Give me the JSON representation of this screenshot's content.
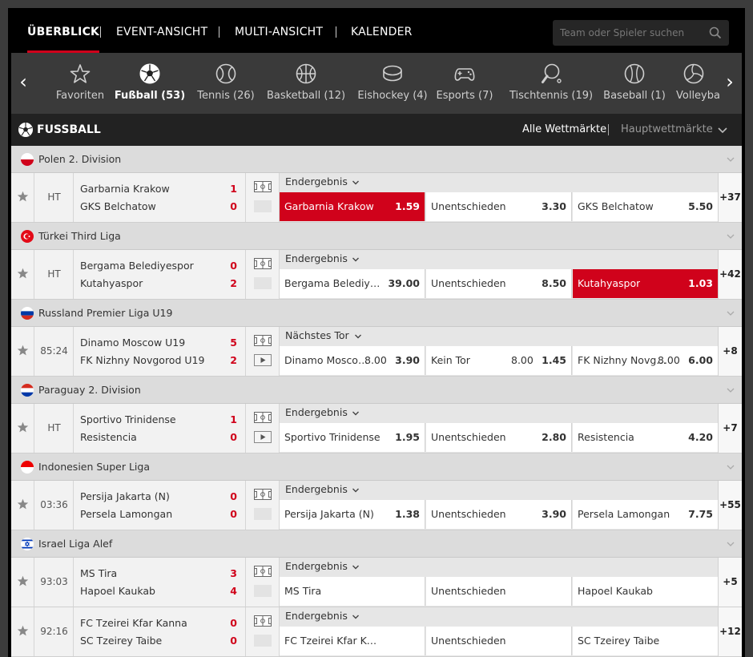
{
  "nav": {
    "tabs": [
      "ÜBERBLICK",
      "EVENT-ANSICHT",
      "MULTI-ANSICHT",
      "KALENDER"
    ],
    "active_tab": "ÜBERBLICK",
    "search_placeholder": "Team oder Spieler suchen"
  },
  "sports": {
    "items": [
      {
        "label": "Favoriten",
        "icon": "star-icon"
      },
      {
        "label": "Fußball (53)",
        "icon": "soccer-ball-icon",
        "active": true
      },
      {
        "label": "Tennis (26)",
        "icon": "tennis-ball-icon"
      },
      {
        "label": "Basketball (12)",
        "icon": "basketball-icon"
      },
      {
        "label": "Eishockey (4)",
        "icon": "hockey-puck-icon"
      },
      {
        "label": "Esports (7)",
        "icon": "gamepad-icon"
      },
      {
        "label": "Tischtennis (19)",
        "icon": "table-tennis-icon"
      },
      {
        "label": "Baseball (1)",
        "icon": "baseball-icon"
      },
      {
        "label": "Volleyba",
        "icon": "volleyball-icon"
      }
    ]
  },
  "section": {
    "title": "FUSSBALL",
    "markets_all": "Alle Wettmärkte",
    "markets_main": "Hauptwettmärkte"
  },
  "colors": {
    "accent": "#d0021b",
    "score": "#d0021b"
  },
  "leagues": [
    {
      "name": "Polen 2. Division",
      "flag": "poland",
      "matches": [
        {
          "time": "HT",
          "home": "Garbarnia Krakow",
          "away": "GKS Belchatow",
          "home_score": "1",
          "away_score": "0",
          "stream": false,
          "market": "Endergebnis",
          "more": "+37",
          "odds": [
            {
              "label": "Garbarnia Krakow",
              "value": "1.59",
              "selected": true
            },
            {
              "label": "Unentschieden",
              "value": "3.30"
            },
            {
              "label": "GKS Belchatow",
              "value": "5.50"
            }
          ]
        }
      ]
    },
    {
      "name": "Türkei Third Liga",
      "flag": "turkey",
      "matches": [
        {
          "time": "HT",
          "home": "Bergama Belediyespor",
          "away": "Kutahyaspor",
          "home_score": "0",
          "away_score": "2",
          "stream": false,
          "market": "Endergebnis",
          "more": "+42",
          "odds": [
            {
              "label": "Bergama Belediyes…",
              "value": "39.00"
            },
            {
              "label": "Unentschieden",
              "value": "8.50"
            },
            {
              "label": "Kutahyaspor",
              "value": "1.03",
              "selected": true
            }
          ]
        }
      ]
    },
    {
      "name": "Russland Premier Liga U19",
      "flag": "russia",
      "matches": [
        {
          "time": "85:24",
          "home": "Dinamo Moscow U19",
          "away": "FK Nizhny Novgorod U19",
          "home_score": "5",
          "away_score": "2",
          "stream": true,
          "market": "Nächstes Tor",
          "more": "+8",
          "odds": [
            {
              "label": "Dinamo Mosco…",
              "line": "8.00",
              "value": "3.90"
            },
            {
              "label": "Kein Tor",
              "line": "8.00",
              "value": "1.45"
            },
            {
              "label": "FK Nizhny Novg…",
              "line": "8.00",
              "value": "6.00"
            }
          ]
        }
      ]
    },
    {
      "name": "Paraguay 2. Division",
      "flag": "paraguay",
      "matches": [
        {
          "time": "HT",
          "home": "Sportivo Trinidense",
          "away": "Resistencia",
          "home_score": "1",
          "away_score": "0",
          "stream": true,
          "market": "Endergebnis",
          "more": "+7",
          "odds": [
            {
              "label": "Sportivo Trinidense",
              "value": "1.95"
            },
            {
              "label": "Unentschieden",
              "value": "2.80"
            },
            {
              "label": "Resistencia",
              "value": "4.20"
            }
          ]
        }
      ]
    },
    {
      "name": "Indonesien Super Liga",
      "flag": "indonesia",
      "matches": [
        {
          "time": "03:36",
          "home": "Persija Jakarta (N)",
          "away": "Persela Lamongan",
          "home_score": "0",
          "away_score": "0",
          "stream": false,
          "market": "Endergebnis",
          "more": "+55",
          "odds": [
            {
              "label": "Persija Jakarta (N)",
              "value": "1.38"
            },
            {
              "label": "Unentschieden",
              "value": "3.90"
            },
            {
              "label": "Persela Lamongan",
              "value": "7.75"
            }
          ]
        }
      ]
    },
    {
      "name": "Israel Liga Alef",
      "flag": "israel",
      "matches": [
        {
          "time": "93:03",
          "home": "MS Tira",
          "away": "Hapoel Kaukab",
          "home_score": "3",
          "away_score": "4",
          "stream": false,
          "market": "Endergebnis",
          "more": "+5",
          "odds": [
            {
              "label": "MS Tira",
              "value": ""
            },
            {
              "label": "Unentschieden",
              "value": ""
            },
            {
              "label": "Hapoel Kaukab",
              "value": ""
            }
          ]
        },
        {
          "time": "92:16",
          "home": "FC Tzeirei Kfar Kanna",
          "away": "SC Tzeirey Taibe",
          "home_score": "0",
          "away_score": "0",
          "stream": false,
          "market": "Endergebnis",
          "more": "+12",
          "odds": [
            {
              "label": "FC Tzeirei Kfar Kanna",
              "value": ""
            },
            {
              "label": "Unentschieden",
              "value": ""
            },
            {
              "label": "SC Tzeirey Taibe",
              "value": ""
            }
          ]
        }
      ]
    }
  ]
}
